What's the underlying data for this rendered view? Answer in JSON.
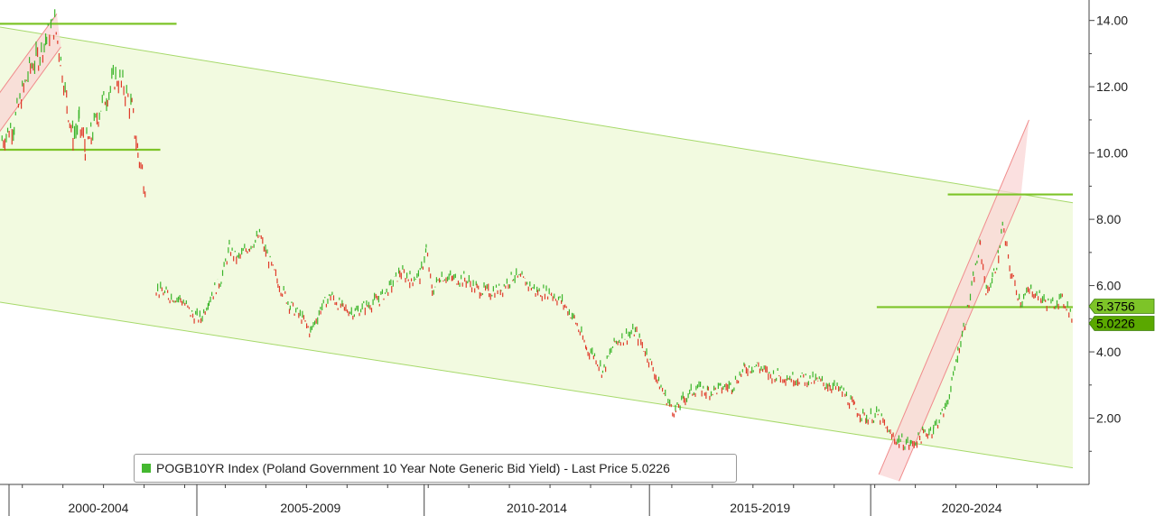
{
  "chart_data": {
    "type": "line",
    "series": [
      {
        "name": "POGB10YR Index (Poland Government 10 Year Note Generic Bid Yield)",
        "color": "#3bb52a",
        "down_color": "#e03a2a",
        "points": [
          [
            1998.5,
            10.4
          ],
          [
            1998.8,
            10.9
          ],
          [
            1999.0,
            11.8
          ],
          [
            1999.2,
            12.6
          ],
          [
            1999.4,
            12.9
          ],
          [
            1999.6,
            13.5
          ],
          [
            1999.8,
            13.9
          ],
          [
            1999.95,
            12.8
          ],
          [
            2000.1,
            11.5
          ],
          [
            2000.25,
            10.5
          ],
          [
            2000.4,
            10.9
          ],
          [
            2000.55,
            10.2
          ],
          [
            2000.7,
            10.5
          ],
          [
            2000.9,
            11.3
          ],
          [
            2001.1,
            11.8
          ],
          [
            2001.3,
            12.3
          ],
          [
            2001.5,
            12.0
          ],
          [
            2001.7,
            11.3
          ],
          [
            2001.85,
            10.0
          ],
          [
            2002.05,
            8.9
          ],
          [
            2002.3,
            5.9
          ],
          [
            2002.6,
            5.7
          ],
          [
            2002.9,
            5.6
          ],
          [
            2003.2,
            5.1
          ],
          [
            2003.4,
            5.0
          ],
          [
            2003.6,
            5.6
          ],
          [
            2003.9,
            6.2
          ],
          [
            2004.1,
            7.1
          ],
          [
            2004.3,
            6.8
          ],
          [
            2004.6,
            7.2
          ],
          [
            2004.85,
            7.5
          ],
          [
            2005.0,
            7.0
          ],
          [
            2005.3,
            6.1
          ],
          [
            2005.6,
            5.4
          ],
          [
            2005.9,
            5.0
          ],
          [
            2006.1,
            4.6
          ],
          [
            2006.35,
            5.3
          ],
          [
            2006.6,
            5.7
          ],
          [
            2006.9,
            5.3
          ],
          [
            2007.2,
            5.2
          ],
          [
            2007.5,
            5.4
          ],
          [
            2007.8,
            5.6
          ],
          [
            2008.1,
            6.0
          ],
          [
            2008.3,
            6.4
          ],
          [
            2008.55,
            6.2
          ],
          [
            2008.8,
            6.3
          ],
          [
            2008.95,
            7.1
          ],
          [
            2009.1,
            5.8
          ],
          [
            2009.3,
            6.3
          ],
          [
            2009.6,
            6.2
          ],
          [
            2009.9,
            6.2
          ],
          [
            2010.2,
            5.9
          ],
          [
            2010.5,
            5.8
          ],
          [
            2010.8,
            5.9
          ],
          [
            2011.1,
            6.3
          ],
          [
            2011.4,
            6.1
          ],
          [
            2011.7,
            5.8
          ],
          [
            2012.0,
            5.8
          ],
          [
            2012.3,
            5.5
          ],
          [
            2012.6,
            5.0
          ],
          [
            2012.9,
            4.1
          ],
          [
            2013.1,
            3.9
          ],
          [
            2013.3,
            3.4
          ],
          [
            2013.6,
            4.3
          ],
          [
            2013.9,
            4.5
          ],
          [
            2014.1,
            4.6
          ],
          [
            2014.4,
            3.9
          ],
          [
            2014.7,
            3.0
          ],
          [
            2014.95,
            2.4
          ],
          [
            2015.1,
            2.2
          ],
          [
            2015.3,
            2.6
          ],
          [
            2015.6,
            2.9
          ],
          [
            2015.9,
            2.8
          ],
          [
            2016.2,
            2.9
          ],
          [
            2016.5,
            3.0
          ],
          [
            2016.8,
            3.5
          ],
          [
            2017.1,
            3.6
          ],
          [
            2017.4,
            3.3
          ],
          [
            2017.7,
            3.3
          ],
          [
            2018.0,
            3.2
          ],
          [
            2018.3,
            3.2
          ],
          [
            2018.6,
            3.1
          ],
          [
            2018.9,
            3.0
          ],
          [
            2019.2,
            2.8
          ],
          [
            2019.5,
            2.3
          ],
          [
            2019.8,
            2.0
          ],
          [
            2020.1,
            2.1
          ],
          [
            2020.35,
            1.5
          ],
          [
            2020.6,
            1.3
          ],
          [
            2020.9,
            1.2
          ],
          [
            2021.2,
            1.5
          ],
          [
            2021.45,
            1.7
          ],
          [
            2021.7,
            2.2
          ],
          [
            2021.9,
            3.0
          ],
          [
            2022.05,
            4.0
          ],
          [
            2022.25,
            5.0
          ],
          [
            2022.45,
            6.3
          ],
          [
            2022.6,
            7.2
          ],
          [
            2022.75,
            5.8
          ],
          [
            2022.9,
            6.2
          ],
          [
            2023.05,
            6.9
          ],
          [
            2023.15,
            7.8
          ],
          [
            2023.35,
            6.4
          ],
          [
            2023.6,
            5.5
          ],
          [
            2023.85,
            5.9
          ],
          [
            2024.1,
            5.6
          ],
          [
            2024.35,
            5.4
          ],
          [
            2024.55,
            5.6
          ],
          [
            2024.75,
            5.4
          ],
          [
            2024.86,
            5.0226
          ]
        ]
      }
    ],
    "xlim": [
      1998.45,
      2024.88
    ],
    "ylim": [
      0,
      14.4
    ],
    "y_ticks": [
      "14.00",
      "12.00",
      "10.00",
      "8.00",
      "6.00",
      "4.00",
      "2.00"
    ],
    "y_tick_values": [
      14,
      12,
      10,
      8,
      6,
      4,
      2
    ],
    "period_labels": [
      {
        "label": "2000-2004",
        "from": 1998.45,
        "to": 2003.3
      },
      {
        "label": "2005-2009",
        "from": 2003.3,
        "to": 2008.9
      },
      {
        "label": "2010-2014",
        "from": 2008.9,
        "to": 2014.45
      },
      {
        "label": "2015-2019",
        "from": 2014.45,
        "to": 2019.9
      },
      {
        "label": "2020-2024",
        "from": 2019.9,
        "to": 2024.88
      }
    ],
    "price_tags": [
      {
        "label": "5.3756",
        "value": 5.3756
      },
      {
        "label": "5.0226",
        "value": 5.0226
      }
    ],
    "legend": "POGB10YR Index (Poland Government 10 Year Note Generic Bid Yield) - Last Price 5.0226",
    "annotations": {
      "channel": {
        "upper": [
          [
            1998.45,
            13.8
          ],
          [
            2024.88,
            8.5
          ]
        ],
        "lower": [
          [
            1998.45,
            5.5
          ],
          [
            2024.88,
            0.5
          ]
        ]
      },
      "hlines": [
        {
          "value": 13.9,
          "from": 1998.45,
          "to": 2002.8
        },
        {
          "value": 10.1,
          "from": 1998.45,
          "to": 2002.4
        },
        {
          "value": 8.75,
          "from": 2021.8,
          "to": 2024.88
        },
        {
          "value": 5.35,
          "from": 2020.05,
          "to": 2024.88
        }
      ],
      "rise_bands": [
        {
          "lower": [
            [
              1998.0,
              9.9
            ],
            [
              1999.95,
              13.2
            ]
          ],
          "upper": [
            [
              1997.9,
              10.9
            ],
            [
              1999.85,
              14.2
            ]
          ]
        },
        {
          "lower": [
            [
              2020.6,
              0.1
            ],
            [
              2023.6,
              8.7
            ]
          ],
          "upper": [
            [
              2020.1,
              0.3
            ],
            [
              2023.8,
              11.0
            ]
          ]
        }
      ]
    },
    "colors": {
      "channel_fill": "#f2fae0",
      "channel_line": "#a6d96a",
      "hline": "#7dc428",
      "band_fill": "#f9d5d5",
      "band_line": "#f08c8c",
      "axis": "#444444",
      "price_tag_up": "#7dc428",
      "price_tag_last": "#5aa800"
    }
  }
}
